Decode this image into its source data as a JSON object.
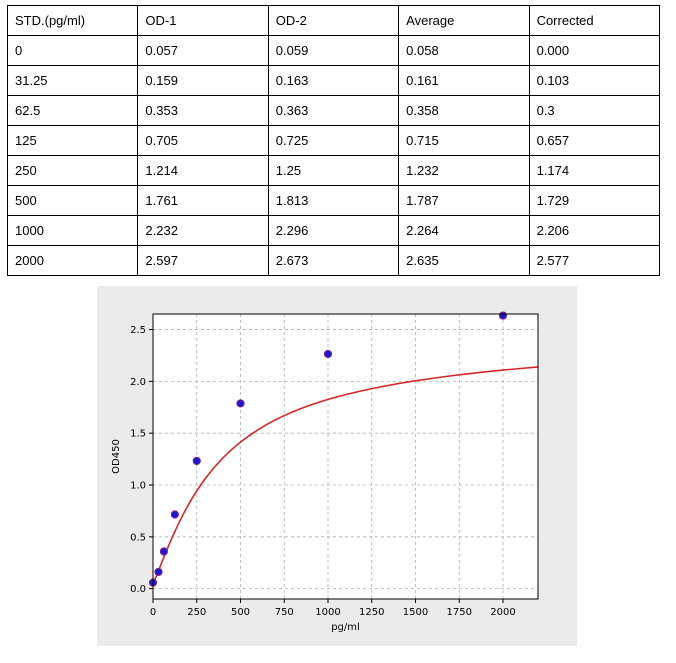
{
  "table": {
    "headers": [
      "STD.(pg/ml)",
      "OD-1",
      "OD-2",
      "Average",
      "Corrected"
    ],
    "rows": [
      [
        "0",
        "0.057",
        "0.059",
        "0.058",
        "0.000"
      ],
      [
        "31.25",
        "0.159",
        "0.163",
        "0.161",
        "0.103"
      ],
      [
        "62.5",
        "0.353",
        "0.363",
        "0.358",
        "0.3"
      ],
      [
        "125",
        "0.705",
        "0.725",
        "0.715",
        "0.657"
      ],
      [
        "250",
        "1.214",
        "1.25",
        "1.232",
        "1.174"
      ],
      [
        "500",
        "1.761",
        "1.813",
        "1.787",
        "1.729"
      ],
      [
        "1000",
        "2.232",
        "2.296",
        "2.264",
        "2.206"
      ],
      [
        "2000",
        "2.597",
        "2.673",
        "2.635",
        "2.577"
      ]
    ]
  },
  "chart_data": {
    "type": "scatter",
    "xlabel": "pg/ml",
    "ylabel": "OD450",
    "xlim": [
      0,
      2200
    ],
    "ylim": [
      -0.1,
      2.65
    ],
    "xticks": [
      0,
      250,
      500,
      750,
      1000,
      1250,
      1500,
      1750,
      2000
    ],
    "xtick_labels": [
      "0",
      "250",
      "500",
      "750",
      "1000",
      "1250",
      "1500",
      "1750",
      "2000"
    ],
    "yticks": [
      0.0,
      0.5,
      1.0,
      1.5,
      2.0,
      2.5
    ],
    "ytick_labels": [
      "0.0",
      "0.5",
      "1.0",
      "1.5",
      "2.0",
      "2.5"
    ],
    "grid": true,
    "series": [
      {
        "x": [
          0,
          31.25,
          62.5,
          125,
          250,
          500,
          1000,
          2000
        ],
        "y": [
          0.058,
          0.161,
          0.358,
          0.715,
          1.232,
          1.787,
          2.264,
          2.635
        ],
        "marker_color": "#1a1acc",
        "marker_edge": "#8b1a8b"
      }
    ],
    "fit_curve": {
      "color": "#d62728",
      "x": [
        0,
        10,
        20,
        30,
        40,
        50,
        60,
        70,
        80,
        90,
        100,
        120,
        140,
        160,
        180,
        200,
        225,
        250,
        275,
        300,
        350,
        400,
        450,
        500,
        550,
        600,
        650,
        700,
        750,
        800,
        850,
        900,
        950,
        1000,
        1100,
        1200,
        1300,
        1400,
        1500,
        1600,
        1700,
        1800,
        1900,
        2000,
        2100,
        2200
      ],
      "y": [
        0.058,
        0.085,
        0.124,
        0.166,
        0.209,
        0.252,
        0.294,
        0.336,
        0.377,
        0.418,
        0.457,
        0.533,
        0.606,
        0.675,
        0.741,
        0.803,
        0.876,
        0.943,
        1.006,
        1.065,
        1.17,
        1.262,
        1.343,
        1.414,
        1.477,
        1.533,
        1.584,
        1.629,
        1.67,
        1.707,
        1.741,
        1.772,
        1.8,
        1.826,
        1.872,
        1.912,
        1.947,
        1.978,
        2.005,
        2.03,
        2.053,
        2.073,
        2.092,
        2.109,
        2.124,
        2.139
      ]
    }
  }
}
